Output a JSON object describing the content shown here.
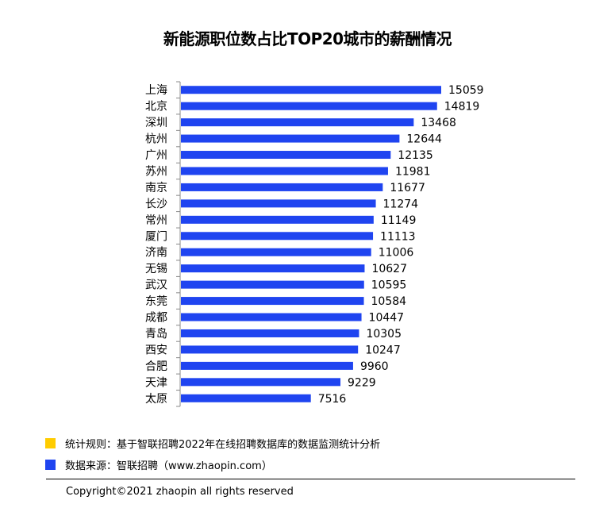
{
  "chart_data": {
    "type": "bar",
    "orientation": "horizontal",
    "title": "新能源职位数占比TOP20城市的薪酬情况",
    "categories": [
      "上海",
      "北京",
      "深圳",
      "杭州",
      "广州",
      "苏州",
      "南京",
      "长沙",
      "常州",
      "厦门",
      "济南",
      "无锡",
      "武汉",
      "东莞",
      "成都",
      "青岛",
      "西安",
      "合肥",
      "天津",
      "太原"
    ],
    "values": [
      15059,
      14819,
      13468,
      12644,
      12135,
      11981,
      11677,
      11274,
      11149,
      11113,
      11006,
      10627,
      10595,
      10584,
      10447,
      10305,
      10247,
      9960,
      9229,
      7516
    ],
    "xlim": [
      0,
      15059
    ],
    "bar_color": "#1f44f0",
    "grid": false
  },
  "legend": [
    {
      "text": "统计规则：基于智联招聘2022年在线招聘数据库的数据监测统计分析",
      "color": "#ffcc00"
    },
    {
      "text": "数据来源：智联招聘（www.zhaopin.com）",
      "color": "#1f44f0"
    }
  ],
  "copyright": "Copyright©2021 zhaopin all rights reserved"
}
